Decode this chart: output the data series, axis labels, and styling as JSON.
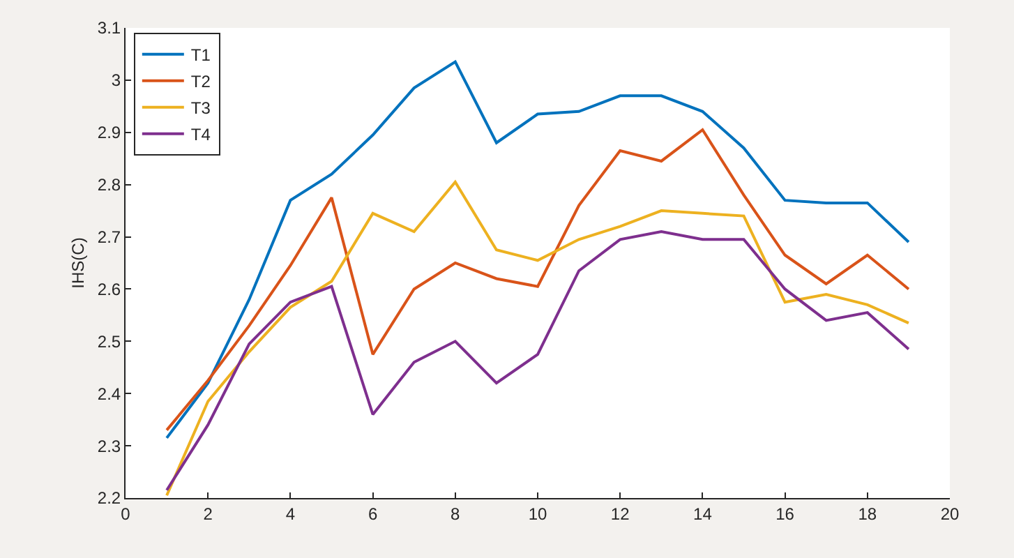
{
  "chart_data": {
    "type": "line",
    "ylabel": "IHS(C)",
    "x": [
      1,
      2,
      3,
      4,
      5,
      6,
      7,
      8,
      9,
      10,
      11,
      12,
      13,
      14,
      15,
      16,
      17,
      18,
      19
    ],
    "xlim": [
      0,
      20
    ],
    "xticks": [
      0,
      2,
      4,
      6,
      8,
      10,
      12,
      14,
      16,
      18,
      20
    ],
    "ylim": [
      2.2,
      3.1
    ],
    "yticks": [
      2.2,
      2.3,
      2.4,
      2.5,
      2.6,
      2.7,
      2.8,
      2.9,
      3,
      3.1
    ],
    "legend": "top left",
    "marker": "none",
    "line_style": "solid",
    "series": [
      {
        "name": "T1",
        "color": "#0072bd",
        "values": [
          2.315,
          2.42,
          2.58,
          2.77,
          2.82,
          2.895,
          2.985,
          3.035,
          2.88,
          2.935,
          2.94,
          2.97,
          2.97,
          2.94,
          2.87,
          2.77,
          2.765,
          2.765,
          2.69
        ]
      },
      {
        "name": "T2",
        "color": "#d95319",
        "values": [
          2.33,
          2.425,
          2.53,
          2.645,
          2.775,
          2.475,
          2.6,
          2.65,
          2.62,
          2.605,
          2.76,
          2.865,
          2.845,
          2.905,
          2.78,
          2.665,
          2.61,
          2.665,
          2.6
        ]
      },
      {
        "name": "T3",
        "color": "#edb120",
        "values": [
          2.205,
          2.385,
          2.48,
          2.565,
          2.615,
          2.745,
          2.71,
          2.805,
          2.675,
          2.655,
          2.695,
          2.72,
          2.75,
          2.745,
          2.74,
          2.575,
          2.59,
          2.57,
          2.535
        ]
      },
      {
        "name": "T4",
        "color": "#7e2f8e",
        "values": [
          2.215,
          2.34,
          2.495,
          2.575,
          2.605,
          2.36,
          2.46,
          2.5,
          2.42,
          2.475,
          2.635,
          2.695,
          2.71,
          2.695,
          2.695,
          2.6,
          2.54,
          2.555,
          2.485
        ]
      }
    ]
  }
}
